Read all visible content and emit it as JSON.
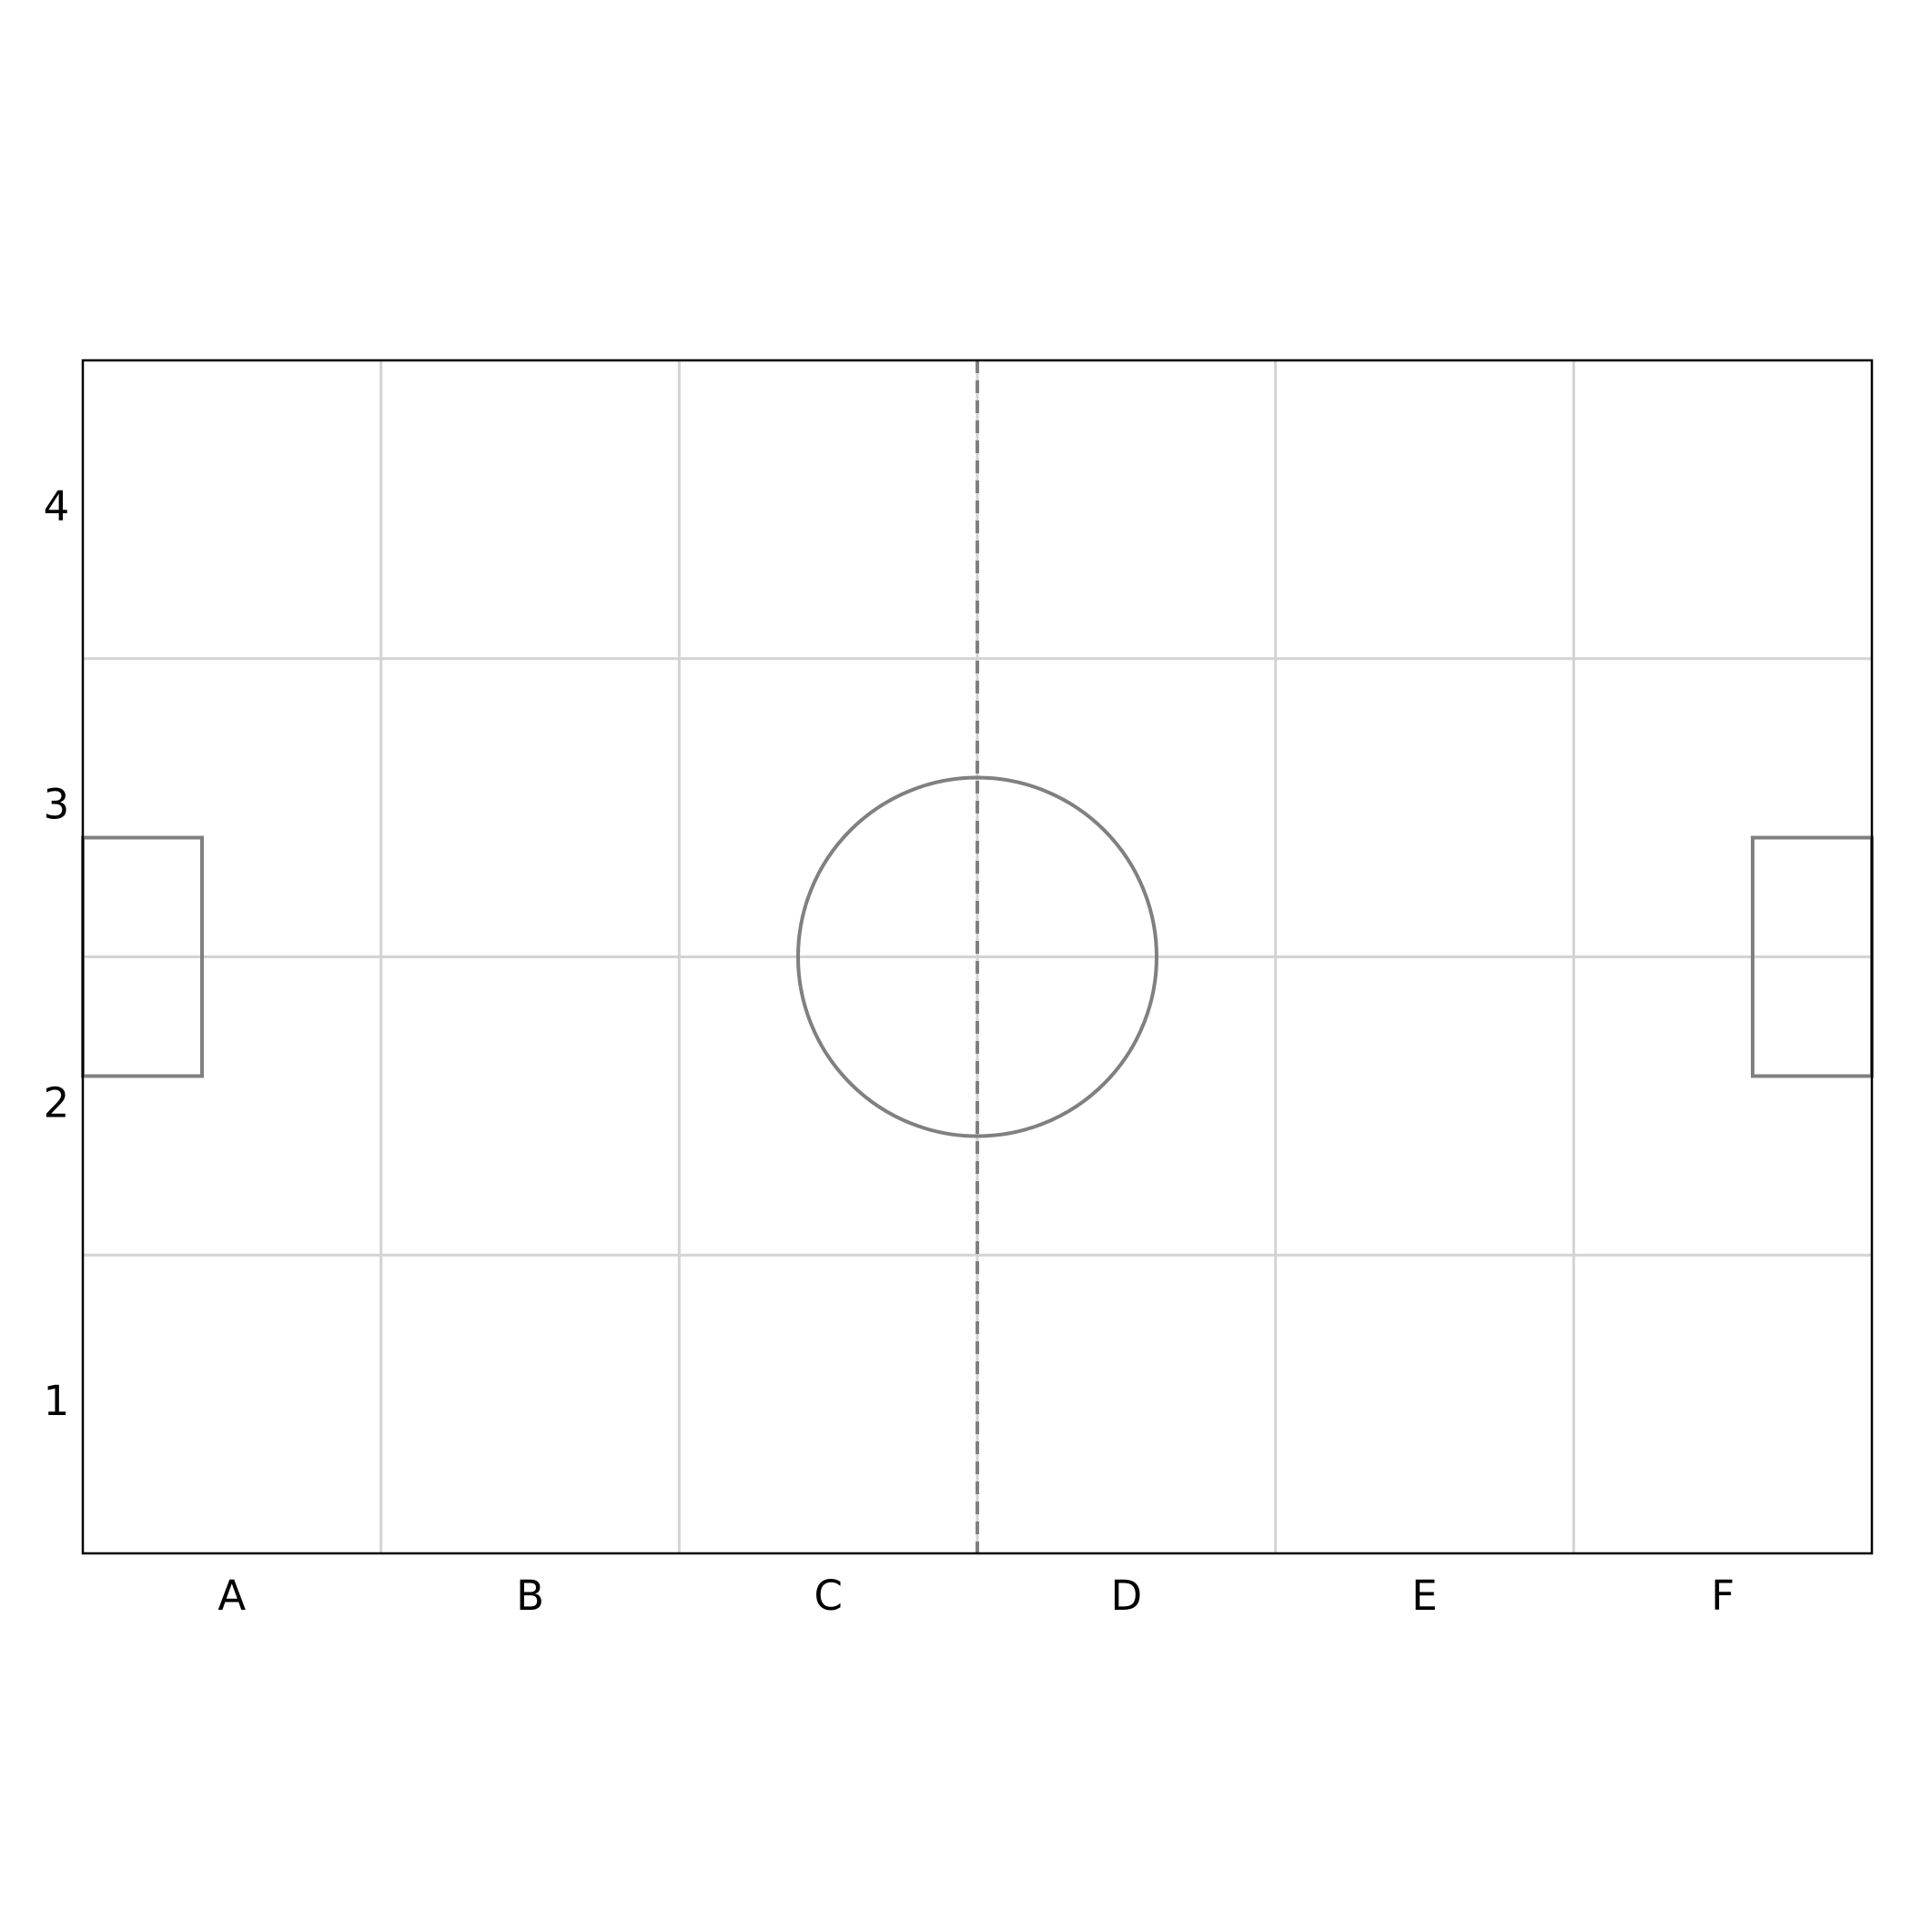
{
  "columns": [
    "A",
    "B",
    "C",
    "D",
    "E",
    "F"
  ],
  "rows": [
    "1",
    "2",
    "3",
    "4"
  ],
  "colors": {
    "background": "#ffffff",
    "border": "#000000",
    "grid": "#d3d3d3",
    "markings": "#808080",
    "text": "#000000"
  },
  "markings": {
    "halfway_line": "dashed",
    "center_circle": true,
    "goal_areas": [
      "left",
      "right"
    ]
  }
}
